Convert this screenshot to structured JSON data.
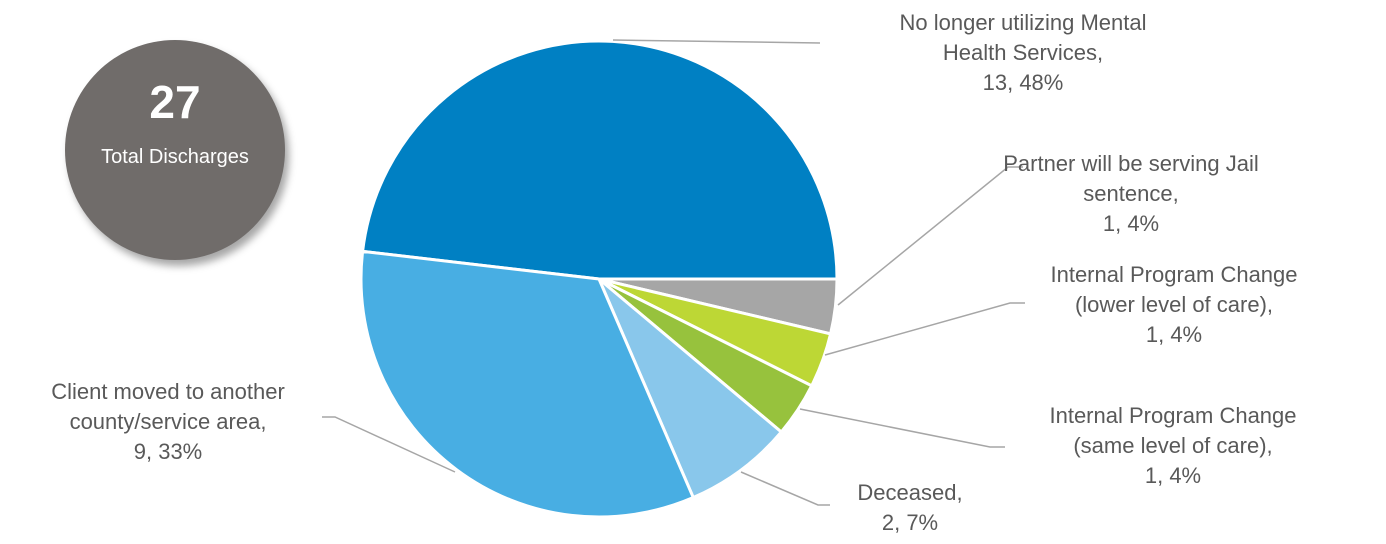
{
  "badge": {
    "value": "27",
    "label": "Total Discharges"
  },
  "chart_data": {
    "type": "pie",
    "title": "",
    "total": 27,
    "slices": [
      {
        "label_lines": [
          "No longer utilizing Mental",
          "Health Services,",
          "13, 48%"
        ],
        "value": 13,
        "percent": 48,
        "color": "#0080C3"
      },
      {
        "label_lines": [
          "Partner will be serving Jail",
          "sentence,",
          "1, 4%"
        ],
        "value": 1,
        "percent": 4,
        "color": "#A6A6A6"
      },
      {
        "label_lines": [
          "Internal Program Change",
          "(lower level of care),",
          "1, 4%"
        ],
        "value": 1,
        "percent": 4,
        "color": "#BDD735"
      },
      {
        "label_lines": [
          "Internal Program Change",
          "(same level of care),",
          "1, 4%"
        ],
        "value": 1,
        "percent": 4,
        "color": "#97C23D"
      },
      {
        "label_lines": [
          "Deceased,",
          "2, 7%"
        ],
        "value": 2,
        "percent": 7,
        "color": "#89C7EB"
      },
      {
        "label_lines": [
          "Client moved to another",
          "county/service area,",
          "9, 33%"
        ],
        "value": 9,
        "percent": 33,
        "color": "#48AEE3"
      }
    ]
  }
}
